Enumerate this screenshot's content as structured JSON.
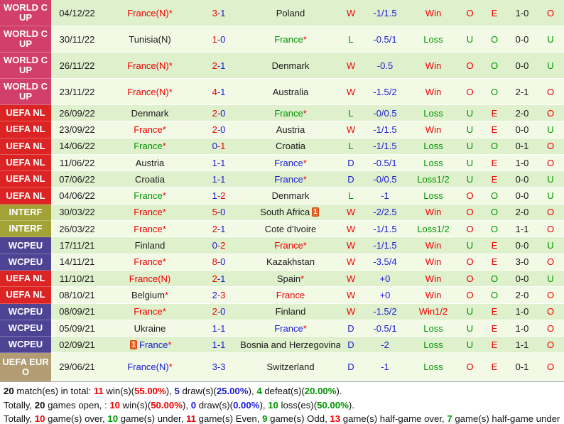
{
  "colors": {
    "red": "#f20000",
    "green": "#009500",
    "blue": "#1a1ad0",
    "black": "#1a1a1a",
    "comp": {
      "WORLD CUP": "#d24069",
      "UEFA NL": "#dd2424",
      "INTERF": "#a2a237",
      "WCPEU": "#4f4494",
      "UEFA EURO": "#b19c73"
    },
    "row_bg_odd": "#dff0cd",
    "row_bg_even": "#f2fae6"
  },
  "red_card_icon": {
    "glyph": "1"
  },
  "rows": [
    {
      "comp": "WORLD CUP",
      "date": "04/12/22",
      "home": {
        "name": "France(N)",
        "star": true,
        "color": "red",
        "card": false
      },
      "score": {
        "h": "3",
        "hc": "red",
        "a": "1",
        "ac": "blue"
      },
      "away": {
        "name": "Poland",
        "star": false,
        "color": "black",
        "card": false
      },
      "result": {
        "t": "W",
        "c": "red"
      },
      "handicap": "-1/1.5",
      "outcome": {
        "t": "Win",
        "c": "red"
      },
      "ou": {
        "t": "O",
        "c": "red"
      },
      "eo": {
        "t": "E",
        "c": "red"
      },
      "ht": "1-0",
      "ou2": {
        "t": "O",
        "c": "red"
      }
    },
    {
      "comp": "WORLD CUP",
      "date": "30/11/22",
      "home": {
        "name": "Tunisia(N)",
        "star": false,
        "color": "black",
        "card": false
      },
      "score": {
        "h": "1",
        "hc": "red",
        "a": "0",
        "ac": "blue"
      },
      "away": {
        "name": "France",
        "star": true,
        "color": "green",
        "card": false
      },
      "result": {
        "t": "L",
        "c": "green"
      },
      "handicap": "-0.5/1",
      "outcome": {
        "t": "Loss",
        "c": "green"
      },
      "ou": {
        "t": "U",
        "c": "green"
      },
      "eo": {
        "t": "O",
        "c": "green"
      },
      "ht": "0-0",
      "ou2": {
        "t": "U",
        "c": "green"
      }
    },
    {
      "comp": "WORLD CUP",
      "date": "26/11/22",
      "home": {
        "name": "France(N)",
        "star": true,
        "color": "red",
        "card": false
      },
      "score": {
        "h": "2",
        "hc": "red",
        "a": "1",
        "ac": "blue"
      },
      "away": {
        "name": "Denmark",
        "star": false,
        "color": "black",
        "card": false
      },
      "result": {
        "t": "W",
        "c": "red"
      },
      "handicap": "-0.5",
      "outcome": {
        "t": "Win",
        "c": "red"
      },
      "ou": {
        "t": "O",
        "c": "red"
      },
      "eo": {
        "t": "O",
        "c": "green"
      },
      "ht": "0-0",
      "ou2": {
        "t": "U",
        "c": "green"
      }
    },
    {
      "comp": "WORLD CUP",
      "date": "23/11/22",
      "home": {
        "name": "France(N)",
        "star": true,
        "color": "red",
        "card": false
      },
      "score": {
        "h": "4",
        "hc": "red",
        "a": "1",
        "ac": "blue"
      },
      "away": {
        "name": "Australia",
        "star": false,
        "color": "black",
        "card": false
      },
      "result": {
        "t": "W",
        "c": "red"
      },
      "handicap": "-1.5/2",
      "outcome": {
        "t": "Win",
        "c": "red"
      },
      "ou": {
        "t": "O",
        "c": "red"
      },
      "eo": {
        "t": "O",
        "c": "green"
      },
      "ht": "2-1",
      "ou2": {
        "t": "O",
        "c": "red"
      }
    },
    {
      "comp": "UEFA NL",
      "date": "26/09/22",
      "home": {
        "name": "Denmark",
        "star": false,
        "color": "black",
        "card": false
      },
      "score": {
        "h": "2",
        "hc": "red",
        "a": "0",
        "ac": "blue"
      },
      "away": {
        "name": "France",
        "star": true,
        "color": "green",
        "card": false
      },
      "result": {
        "t": "L",
        "c": "green"
      },
      "handicap": "-0/0.5",
      "outcome": {
        "t": "Loss",
        "c": "green"
      },
      "ou": {
        "t": "U",
        "c": "green"
      },
      "eo": {
        "t": "E",
        "c": "red"
      },
      "ht": "2-0",
      "ou2": {
        "t": "O",
        "c": "red"
      }
    },
    {
      "comp": "UEFA NL",
      "date": "23/09/22",
      "home": {
        "name": "France",
        "star": true,
        "color": "red",
        "card": false
      },
      "score": {
        "h": "2",
        "hc": "red",
        "a": "0",
        "ac": "blue"
      },
      "away": {
        "name": "Austria",
        "star": false,
        "color": "black",
        "card": false
      },
      "result": {
        "t": "W",
        "c": "red"
      },
      "handicap": "-1/1.5",
      "outcome": {
        "t": "Win",
        "c": "red"
      },
      "ou": {
        "t": "U",
        "c": "green"
      },
      "eo": {
        "t": "E",
        "c": "red"
      },
      "ht": "0-0",
      "ou2": {
        "t": "U",
        "c": "green"
      }
    },
    {
      "comp": "UEFA NL",
      "date": "14/06/22",
      "home": {
        "name": "France",
        "star": true,
        "color": "green",
        "card": false
      },
      "score": {
        "h": "0",
        "hc": "blue",
        "a": "1",
        "ac": "red"
      },
      "away": {
        "name": "Croatia",
        "star": false,
        "color": "black",
        "card": false
      },
      "result": {
        "t": "L",
        "c": "green"
      },
      "handicap": "-1/1.5",
      "outcome": {
        "t": "Loss",
        "c": "green"
      },
      "ou": {
        "t": "U",
        "c": "green"
      },
      "eo": {
        "t": "O",
        "c": "green"
      },
      "ht": "0-1",
      "ou2": {
        "t": "O",
        "c": "red"
      }
    },
    {
      "comp": "UEFA NL",
      "date": "11/06/22",
      "home": {
        "name": "Austria",
        "star": false,
        "color": "black",
        "card": false
      },
      "score": {
        "h": "1",
        "hc": "blue",
        "a": "1",
        "ac": "blue"
      },
      "away": {
        "name": "France",
        "star": true,
        "color": "blue",
        "card": false
      },
      "result": {
        "t": "D",
        "c": "blue"
      },
      "handicap": "-0.5/1",
      "outcome": {
        "t": "Loss",
        "c": "green"
      },
      "ou": {
        "t": "U",
        "c": "green"
      },
      "eo": {
        "t": "E",
        "c": "red"
      },
      "ht": "1-0",
      "ou2": {
        "t": "O",
        "c": "red"
      }
    },
    {
      "comp": "UEFA NL",
      "date": "07/06/22",
      "home": {
        "name": "Croatia",
        "star": false,
        "color": "black",
        "card": false
      },
      "score": {
        "h": "1",
        "hc": "blue",
        "a": "1",
        "ac": "blue"
      },
      "away": {
        "name": "France",
        "star": true,
        "color": "blue",
        "card": false
      },
      "result": {
        "t": "D",
        "c": "blue"
      },
      "handicap": "-0/0.5",
      "outcome": {
        "t": "Loss1/2",
        "c": "green"
      },
      "ou": {
        "t": "U",
        "c": "green"
      },
      "eo": {
        "t": "E",
        "c": "red"
      },
      "ht": "0-0",
      "ou2": {
        "t": "U",
        "c": "green"
      }
    },
    {
      "comp": "UEFA NL",
      "date": "04/06/22",
      "home": {
        "name": "France",
        "star": true,
        "color": "green",
        "card": false
      },
      "score": {
        "h": "1",
        "hc": "blue",
        "a": "2",
        "ac": "red"
      },
      "away": {
        "name": "Denmark",
        "star": false,
        "color": "black",
        "card": false
      },
      "result": {
        "t": "L",
        "c": "green"
      },
      "handicap": "-1",
      "outcome": {
        "t": "Loss",
        "c": "green"
      },
      "ou": {
        "t": "O",
        "c": "red"
      },
      "eo": {
        "t": "O",
        "c": "green"
      },
      "ht": "0-0",
      "ou2": {
        "t": "U",
        "c": "green"
      }
    },
    {
      "comp": "INTERF",
      "date": "30/03/22",
      "home": {
        "name": "France",
        "star": true,
        "color": "red",
        "card": false
      },
      "score": {
        "h": "5",
        "hc": "red",
        "a": "0",
        "ac": "blue"
      },
      "away": {
        "name": "South Africa",
        "star": false,
        "color": "black",
        "card": true
      },
      "result": {
        "t": "W",
        "c": "red"
      },
      "handicap": "-2/2.5",
      "outcome": {
        "t": "Win",
        "c": "red"
      },
      "ou": {
        "t": "O",
        "c": "red"
      },
      "eo": {
        "t": "O",
        "c": "green"
      },
      "ht": "2-0",
      "ou2": {
        "t": "O",
        "c": "red"
      }
    },
    {
      "comp": "INTERF",
      "date": "26/03/22",
      "home": {
        "name": "France",
        "star": true,
        "color": "red",
        "card": false
      },
      "score": {
        "h": "2",
        "hc": "red",
        "a": "1",
        "ac": "blue"
      },
      "away": {
        "name": "Cote d'Ivoire",
        "star": false,
        "color": "black",
        "card": false
      },
      "result": {
        "t": "W",
        "c": "red"
      },
      "handicap": "-1/1.5",
      "outcome": {
        "t": "Loss1/2",
        "c": "green"
      },
      "ou": {
        "t": "O",
        "c": "red"
      },
      "eo": {
        "t": "O",
        "c": "green"
      },
      "ht": "1-1",
      "ou2": {
        "t": "O",
        "c": "red"
      }
    },
    {
      "comp": "WCPEU",
      "date": "17/11/21",
      "home": {
        "name": "Finland",
        "star": false,
        "color": "black",
        "card": false
      },
      "score": {
        "h": "0",
        "hc": "blue",
        "a": "2",
        "ac": "red"
      },
      "away": {
        "name": "France",
        "star": true,
        "color": "red",
        "card": false
      },
      "result": {
        "t": "W",
        "c": "red"
      },
      "handicap": "-1/1.5",
      "outcome": {
        "t": "Win",
        "c": "red"
      },
      "ou": {
        "t": "U",
        "c": "green"
      },
      "eo": {
        "t": "E",
        "c": "red"
      },
      "ht": "0-0",
      "ou2": {
        "t": "U",
        "c": "green"
      }
    },
    {
      "comp": "WCPEU",
      "date": "14/11/21",
      "home": {
        "name": "France",
        "star": true,
        "color": "red",
        "card": false
      },
      "score": {
        "h": "8",
        "hc": "red",
        "a": "0",
        "ac": "blue"
      },
      "away": {
        "name": "Kazakhstan",
        "star": false,
        "color": "black",
        "card": false
      },
      "result": {
        "t": "W",
        "c": "red"
      },
      "handicap": "-3.5/4",
      "outcome": {
        "t": "Win",
        "c": "red"
      },
      "ou": {
        "t": "O",
        "c": "red"
      },
      "eo": {
        "t": "E",
        "c": "red"
      },
      "ht": "3-0",
      "ou2": {
        "t": "O",
        "c": "red"
      }
    },
    {
      "comp": "UEFA NL",
      "date": "11/10/21",
      "home": {
        "name": "France(N)",
        "star": false,
        "color": "red",
        "card": false
      },
      "score": {
        "h": "2",
        "hc": "red",
        "a": "1",
        "ac": "blue"
      },
      "away": {
        "name": "Spain",
        "star": true,
        "color": "black",
        "card": false
      },
      "result": {
        "t": "W",
        "c": "red"
      },
      "handicap": "+0",
      "outcome": {
        "t": "Win",
        "c": "red"
      },
      "ou": {
        "t": "O",
        "c": "red"
      },
      "eo": {
        "t": "O",
        "c": "green"
      },
      "ht": "0-0",
      "ou2": {
        "t": "U",
        "c": "green"
      }
    },
    {
      "comp": "UEFA NL",
      "date": "08/10/21",
      "home": {
        "name": "Belgium",
        "star": true,
        "color": "black",
        "card": false
      },
      "score": {
        "h": "2",
        "hc": "blue",
        "a": "3",
        "ac": "red"
      },
      "away": {
        "name": "France",
        "star": false,
        "color": "red",
        "card": false
      },
      "result": {
        "t": "W",
        "c": "red"
      },
      "handicap": "+0",
      "outcome": {
        "t": "Win",
        "c": "red"
      },
      "ou": {
        "t": "O",
        "c": "red"
      },
      "eo": {
        "t": "O",
        "c": "green"
      },
      "ht": "2-0",
      "ou2": {
        "t": "O",
        "c": "red"
      }
    },
    {
      "comp": "WCPEU",
      "date": "08/09/21",
      "home": {
        "name": "France",
        "star": true,
        "color": "red",
        "card": false
      },
      "score": {
        "h": "2",
        "hc": "red",
        "a": "0",
        "ac": "blue"
      },
      "away": {
        "name": "Finland",
        "star": false,
        "color": "black",
        "card": false
      },
      "result": {
        "t": "W",
        "c": "red"
      },
      "handicap": "-1.5/2",
      "outcome": {
        "t": "Win1/2",
        "c": "red"
      },
      "ou": {
        "t": "U",
        "c": "green"
      },
      "eo": {
        "t": "E",
        "c": "red"
      },
      "ht": "1-0",
      "ou2": {
        "t": "O",
        "c": "red"
      }
    },
    {
      "comp": "WCPEU",
      "date": "05/09/21",
      "home": {
        "name": "Ukraine",
        "star": false,
        "color": "black",
        "card": false
      },
      "score": {
        "h": "1",
        "hc": "blue",
        "a": "1",
        "ac": "blue"
      },
      "away": {
        "name": "France",
        "star": true,
        "color": "blue",
        "card": false
      },
      "result": {
        "t": "D",
        "c": "blue"
      },
      "handicap": "-0.5/1",
      "outcome": {
        "t": "Loss",
        "c": "green"
      },
      "ou": {
        "t": "U",
        "c": "green"
      },
      "eo": {
        "t": "E",
        "c": "red"
      },
      "ht": "1-0",
      "ou2": {
        "t": "O",
        "c": "red"
      }
    },
    {
      "comp": "WCPEU",
      "date": "02/09/21",
      "home": {
        "name": "France",
        "star": true,
        "color": "blue",
        "card": true
      },
      "score": {
        "h": "1",
        "hc": "blue",
        "a": "1",
        "ac": "blue"
      },
      "away": {
        "name": "Bosnia and Herzegovina",
        "star": false,
        "color": "black",
        "card": false
      },
      "result": {
        "t": "D",
        "c": "blue"
      },
      "handicap": "-2",
      "outcome": {
        "t": "Loss",
        "c": "green"
      },
      "ou": {
        "t": "U",
        "c": "green"
      },
      "eo": {
        "t": "E",
        "c": "red"
      },
      "ht": "1-1",
      "ou2": {
        "t": "O",
        "c": "red"
      }
    },
    {
      "comp": "UEFA EURO",
      "date": "29/06/21",
      "home": {
        "name": "France(N)",
        "star": true,
        "color": "blue",
        "card": false
      },
      "score": {
        "h": "3",
        "hc": "blue",
        "a": "3",
        "ac": "blue"
      },
      "away": {
        "name": "Switzerland",
        "star": false,
        "color": "black",
        "card": false
      },
      "result": {
        "t": "D",
        "c": "blue"
      },
      "handicap": "-1",
      "outcome": {
        "t": "Loss",
        "c": "green"
      },
      "ou": {
        "t": "O",
        "c": "red"
      },
      "eo": {
        "t": "E",
        "c": "red"
      },
      "ht": "0-1",
      "ou2": {
        "t": "O",
        "c": "red"
      }
    }
  ],
  "summary": {
    "lines": [
      [
        {
          "t": "20",
          "b": true
        },
        {
          "t": " match(es) in total: "
        },
        {
          "t": "11",
          "b": true,
          "c": "red"
        },
        {
          "t": " win(s)("
        },
        {
          "t": "55.00%",
          "b": true,
          "c": "red"
        },
        {
          "t": "), "
        },
        {
          "t": "5",
          "b": true,
          "c": "blue"
        },
        {
          "t": " draw(s)("
        },
        {
          "t": "25.00%",
          "b": true,
          "c": "blue"
        },
        {
          "t": "), "
        },
        {
          "t": "4",
          "b": true,
          "c": "green"
        },
        {
          "t": " defeat(s)("
        },
        {
          "t": "20.00%",
          "b": true,
          "c": "green"
        },
        {
          "t": ")."
        }
      ],
      [
        {
          "t": "Totally, "
        },
        {
          "t": "20",
          "b": true
        },
        {
          "t": " games open, : "
        },
        {
          "t": "10",
          "b": true,
          "c": "red"
        },
        {
          "t": " win(s)("
        },
        {
          "t": "50.00%",
          "b": true,
          "c": "red"
        },
        {
          "t": "), "
        },
        {
          "t": "0",
          "b": true,
          "c": "blue"
        },
        {
          "t": " draw(s)("
        },
        {
          "t": "0.00%",
          "b": true,
          "c": "blue"
        },
        {
          "t": "), "
        },
        {
          "t": "10",
          "b": true,
          "c": "green"
        },
        {
          "t": " loss(es)("
        },
        {
          "t": "50.00%",
          "b": true,
          "c": "green"
        },
        {
          "t": ")."
        }
      ],
      [
        {
          "t": "Totally, "
        },
        {
          "t": "10",
          "b": true,
          "c": "red"
        },
        {
          "t": " game(s) over, "
        },
        {
          "t": "10",
          "b": true,
          "c": "green"
        },
        {
          "t": " game(s) under, "
        },
        {
          "t": "11",
          "b": true,
          "c": "red"
        },
        {
          "t": " game(s) Even, "
        },
        {
          "t": "9",
          "b": true,
          "c": "green"
        },
        {
          "t": " game(s) Odd, "
        },
        {
          "t": "13",
          "b": true,
          "c": "red"
        },
        {
          "t": " game(s) half-game over, "
        },
        {
          "t": "7",
          "b": true,
          "c": "green"
        },
        {
          "t": " game(s) half-game under"
        }
      ]
    ]
  }
}
